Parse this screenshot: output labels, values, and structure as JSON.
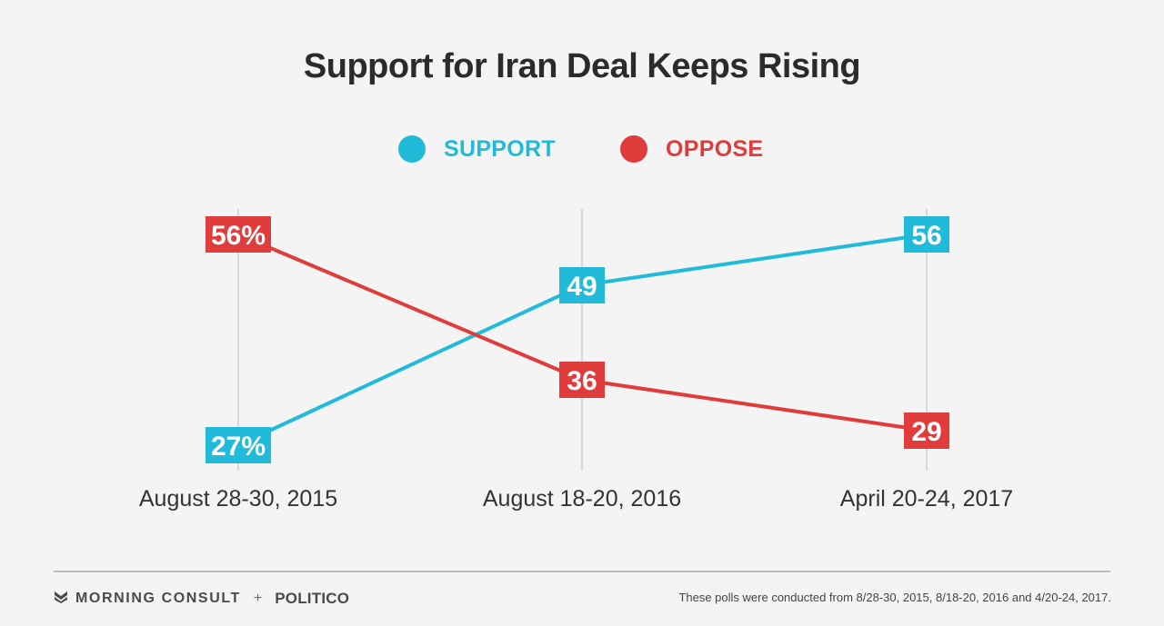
{
  "chart_data": {
    "type": "line",
    "title": "Support for Iran Deal Keeps Rising",
    "categories": [
      "August 28-30, 2015",
      "August 18-20, 2016",
      "April 20-24, 2017"
    ],
    "series": [
      {
        "name": "SUPPORT",
        "color": "#21bbd9",
        "values": [
          27,
          49,
          56
        ],
        "labels": [
          "27%",
          "49",
          "56"
        ]
      },
      {
        "name": "OPPOSE",
        "color": "#e03c3c",
        "values": [
          56,
          36,
          29
        ],
        "labels": [
          "56%",
          "36",
          "29"
        ]
      }
    ],
    "legend_position": "top-center",
    "grid": "vertical"
  },
  "footer": {
    "brand_left": "MORNING CONSULT",
    "brand_plus": "+",
    "brand_right": "POLITICO",
    "note": "These polls were conducted from 8/28-30, 2015, 8/18-20, 2016 and 4/20-24, 2017."
  },
  "icons": {
    "brand_logo": "morning-consult-logo"
  }
}
